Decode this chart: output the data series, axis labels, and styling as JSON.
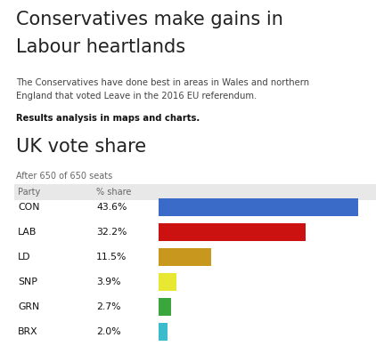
{
  "main_title_line1": "Conservatives make gains in",
  "main_title_line2": "Labour heartlands",
  "subtitle_line1": "The Conservatives have done best in areas in Wales and northern",
  "subtitle_line2": "England that voted Leave in the 2016 EU referendum.",
  "bold_line": "Results analysis in maps and charts.",
  "chart_title": "UK vote share",
  "chart_subtitle": "After 650 of 650 seats",
  "col_party": "Party",
  "col_share": "% share",
  "parties": [
    "CON",
    "LAB",
    "LD",
    "SNP",
    "GRN",
    "BRX"
  ],
  "values": [
    43.6,
    32.2,
    11.5,
    3.9,
    2.7,
    2.0
  ],
  "labels": [
    "43.6%",
    "32.2%",
    "11.5%",
    "3.9%",
    "2.7%",
    "2.0%"
  ],
  "colors": [
    "#3a6bc9",
    "#cc1111",
    "#c8981e",
    "#e8e832",
    "#3ba63b",
    "#3bbccc"
  ],
  "bg_color": "#ffffff",
  "header_bg": "#e8e8e8",
  "bar_max": 46,
  "fig_width": 4.22,
  "fig_height": 3.98,
  "dpi": 100
}
